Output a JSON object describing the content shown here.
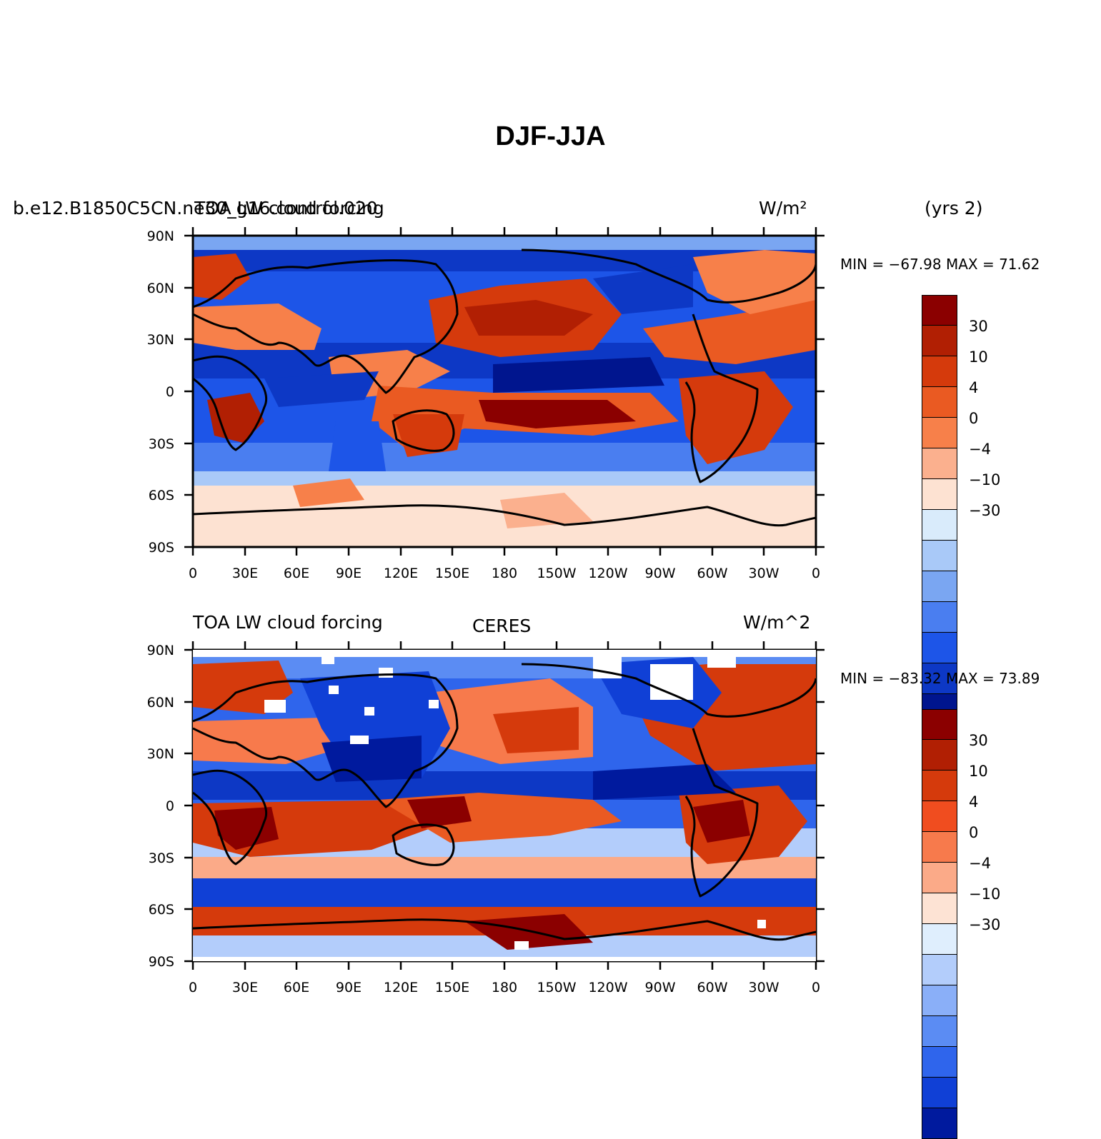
{
  "title": "DJF-JJA",
  "panels": [
    {
      "left_title": "b.e12.B1850C5CN.ne30_g16.control.020",
      "center_title": "TOA LW cloud forcing",
      "right_title": "W/m²",
      "extra_label": "(yrs 2)",
      "stats": "MIN = −67.98  MAX =  71.62",
      "colorbar_colors": [
        "#8b0000",
        "#b11f03",
        "#d53a0c",
        "#ea5a22",
        "#f7804a",
        "#fbb08e",
        "#fde2d2",
        "#d9ebfb",
        "#a9c9f8",
        "#7aa6f2",
        "#4a7ef0",
        "#1d55e8",
        "#0d38c5",
        "#00158e"
      ],
      "colorbar_labels": [
        "30",
        "10",
        "4",
        "0",
        "−4",
        "−10",
        "−30"
      ]
    },
    {
      "left_title": "TOA LW cloud forcing",
      "center_title": "CERES",
      "right_title": "W/m^2",
      "stats": "MIN = −83.32  MAX =  73.89",
      "colorbar_colors": [
        "#8b0000",
        "#b11f03",
        "#d53a0c",
        "#f04d1f",
        "#f77a4c",
        "#fbaa88",
        "#fde3d4",
        "#dfeefd",
        "#b3cdfb",
        "#8aaff8",
        "#5b8cf3",
        "#2f65ec",
        "#1040d6",
        "#001a9e"
      ],
      "colorbar_labels": [
        "30",
        "10",
        "4",
        "0",
        "−4",
        "−10",
        "−30"
      ]
    }
  ],
  "axes": {
    "lat_labels": [
      "90N",
      "60N",
      "30N",
      "0",
      "30S",
      "60S",
      "90S"
    ],
    "lon_labels": [
      "0",
      "30E",
      "60E",
      "90E",
      "120E",
      "150E",
      "180",
      "150W",
      "120W",
      "90W",
      "60W",
      "30W",
      "0"
    ]
  },
  "chart_data": [
    {
      "type": "heatmap",
      "title": "TOA LW cloud forcing",
      "subtitle": "b.e12.B1850C5CN.ne30_g16.control.020 (yrs 2)",
      "units": "W/m²",
      "season_difference": "DJF-JJA",
      "x_range": [
        0,
        360
      ],
      "y_range": [
        -90,
        90
      ],
      "min": -67.98,
      "max": 71.62,
      "contour_levels": [
        -40,
        -30,
        -20,
        -10,
        -7,
        -4,
        -2,
        0,
        2,
        4,
        7,
        10,
        20,
        30,
        40
      ]
    },
    {
      "type": "heatmap",
      "title": "TOA LW cloud forcing",
      "subtitle": "CERES",
      "units": "W/m^2",
      "season_difference": "DJF-JJA",
      "x_range": [
        0,
        360
      ],
      "y_range": [
        -90,
        90
      ],
      "min": -83.32,
      "max": 73.89,
      "contour_levels": [
        -40,
        -30,
        -20,
        -10,
        -7,
        -4,
        -2,
        0,
        2,
        4,
        7,
        10,
        20,
        30,
        40
      ]
    }
  ]
}
